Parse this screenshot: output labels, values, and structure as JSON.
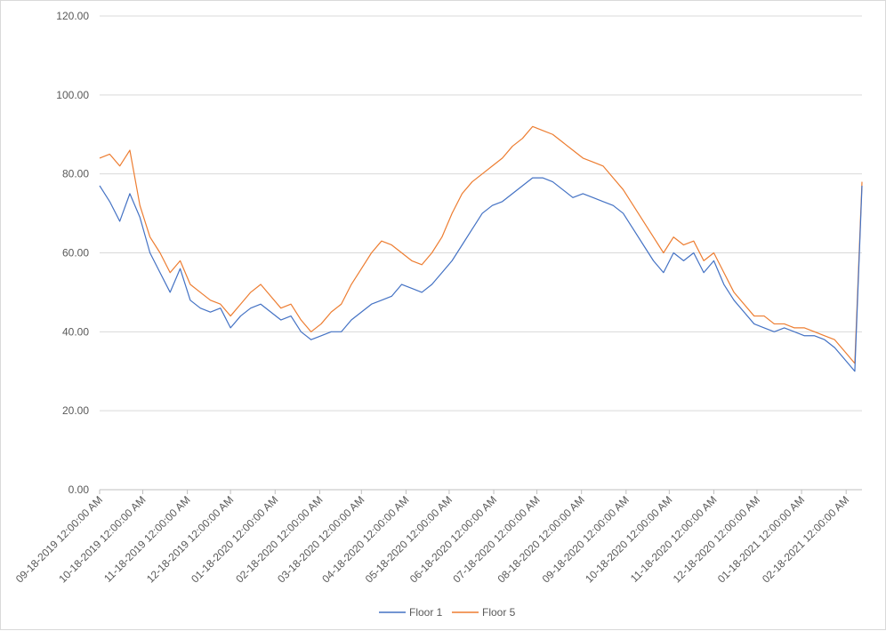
{
  "chart_data": {
    "type": "line",
    "title": "",
    "xlabel": "",
    "ylabel": "",
    "ylim": [
      0,
      120
    ],
    "yticks": [
      "0.00",
      "20.00",
      "40.00",
      "60.00",
      "80.00",
      "100.00",
      "120.00"
    ],
    "ytick_values": [
      0,
      20,
      40,
      60,
      80,
      100,
      120
    ],
    "x_range": [
      "2019-09-18",
      "2021-03-01"
    ],
    "xticks": [
      {
        "date": "2019-09-18",
        "label": "09-18-2019 12:00:00 AM"
      },
      {
        "date": "2019-10-18",
        "label": "10-18-2019 12:00:00 AM"
      },
      {
        "date": "2019-11-18",
        "label": "11-18-2019 12:00:00 AM"
      },
      {
        "date": "2019-12-18",
        "label": "12-18-2019 12:00:00 AM"
      },
      {
        "date": "2020-01-18",
        "label": "01-18-2020 12:00:00 AM"
      },
      {
        "date": "2020-02-18",
        "label": "02-18-2020 12:00:00 AM"
      },
      {
        "date": "2020-03-18",
        "label": "03-18-2020 12:00:00 AM"
      },
      {
        "date": "2020-04-18",
        "label": "04-18-2020 12:00:00 AM"
      },
      {
        "date": "2020-05-18",
        "label": "05-18-2020 12:00:00 AM"
      },
      {
        "date": "2020-06-18",
        "label": "06-18-2020 12:00:00 AM"
      },
      {
        "date": "2020-07-18",
        "label": "07-18-2020 12:00:00 AM"
      },
      {
        "date": "2020-08-18",
        "label": "08-18-2020 12:00:00 AM"
      },
      {
        "date": "2020-09-18",
        "label": "09-18-2020 12:00:00 AM"
      },
      {
        "date": "2020-10-18",
        "label": "10-18-2020 12:00:00 AM"
      },
      {
        "date": "2020-11-18",
        "label": "11-18-2020 12:00:00 AM"
      },
      {
        "date": "2020-12-18",
        "label": "12-18-2020 12:00:00 AM"
      },
      {
        "date": "2021-01-18",
        "label": "01-18-2021 12:00:00 AM"
      },
      {
        "date": "2021-02-18",
        "label": "02-18-2021 12:00:00 AM"
      }
    ],
    "grid": true,
    "legend_position": "bottom",
    "x": [
      "2019-09-18",
      "2019-09-25",
      "2019-10-02",
      "2019-10-09",
      "2019-10-16",
      "2019-10-23",
      "2019-10-30",
      "2019-11-06",
      "2019-11-13",
      "2019-11-20",
      "2019-11-27",
      "2019-12-04",
      "2019-12-11",
      "2019-12-18",
      "2019-12-25",
      "2020-01-01",
      "2020-01-08",
      "2020-01-15",
      "2020-01-22",
      "2020-01-29",
      "2020-02-05",
      "2020-02-12",
      "2020-02-19",
      "2020-02-26",
      "2020-03-04",
      "2020-03-11",
      "2020-03-18",
      "2020-03-25",
      "2020-04-01",
      "2020-04-08",
      "2020-04-15",
      "2020-04-22",
      "2020-04-29",
      "2020-05-06",
      "2020-05-13",
      "2020-05-20",
      "2020-05-27",
      "2020-06-03",
      "2020-06-10",
      "2020-06-17",
      "2020-06-24",
      "2020-07-01",
      "2020-07-08",
      "2020-07-15",
      "2020-07-22",
      "2020-07-29",
      "2020-08-05",
      "2020-08-12",
      "2020-08-19",
      "2020-08-26",
      "2020-09-02",
      "2020-09-09",
      "2020-09-16",
      "2020-09-23",
      "2020-09-30",
      "2020-10-07",
      "2020-10-14",
      "2020-10-21",
      "2020-10-28",
      "2020-11-04",
      "2020-11-11",
      "2020-11-18",
      "2020-11-25",
      "2020-12-02",
      "2020-12-09",
      "2020-12-16",
      "2020-12-23",
      "2020-12-30",
      "2021-01-06",
      "2021-01-13",
      "2021-01-20",
      "2021-01-27",
      "2021-02-03",
      "2021-02-10",
      "2021-02-17",
      "2021-02-24",
      "2021-03-01"
    ],
    "series": [
      {
        "name": "Floor 1",
        "color": "#4472c4",
        "values": [
          77,
          73,
          68,
          75,
          69,
          60,
          55,
          50,
          56,
          48,
          46,
          45,
          46,
          41,
          44,
          46,
          47,
          45,
          43,
          44,
          40,
          38,
          39,
          40,
          40,
          43,
          45,
          47,
          48,
          49,
          52,
          51,
          50,
          52,
          55,
          58,
          62,
          66,
          70,
          72,
          73,
          75,
          77,
          79,
          79,
          78,
          76,
          74,
          75,
          74,
          73,
          72,
          70,
          66,
          62,
          58,
          55,
          60,
          58,
          60,
          55,
          58,
          52,
          48,
          45,
          42,
          41,
          40,
          41,
          40,
          39,
          39,
          38,
          36,
          33,
          30,
          77
        ]
      },
      {
        "name": "Floor 5",
        "color": "#ed7d31",
        "values": [
          84,
          85,
          82,
          86,
          72,
          64,
          60,
          55,
          58,
          52,
          50,
          48,
          47,
          44,
          47,
          50,
          52,
          49,
          46,
          47,
          43,
          40,
          42,
          45,
          47,
          52,
          56,
          60,
          63,
          62,
          60,
          58,
          57,
          60,
          64,
          70,
          75,
          78,
          80,
          82,
          84,
          87,
          89,
          92,
          91,
          90,
          88,
          86,
          84,
          83,
          82,
          79,
          76,
          72,
          68,
          64,
          60,
          64,
          62,
          63,
          58,
          60,
          55,
          50,
          47,
          44,
          44,
          42,
          42,
          41,
          41,
          40,
          39,
          38,
          35,
          32,
          78
        ]
      }
    ]
  }
}
